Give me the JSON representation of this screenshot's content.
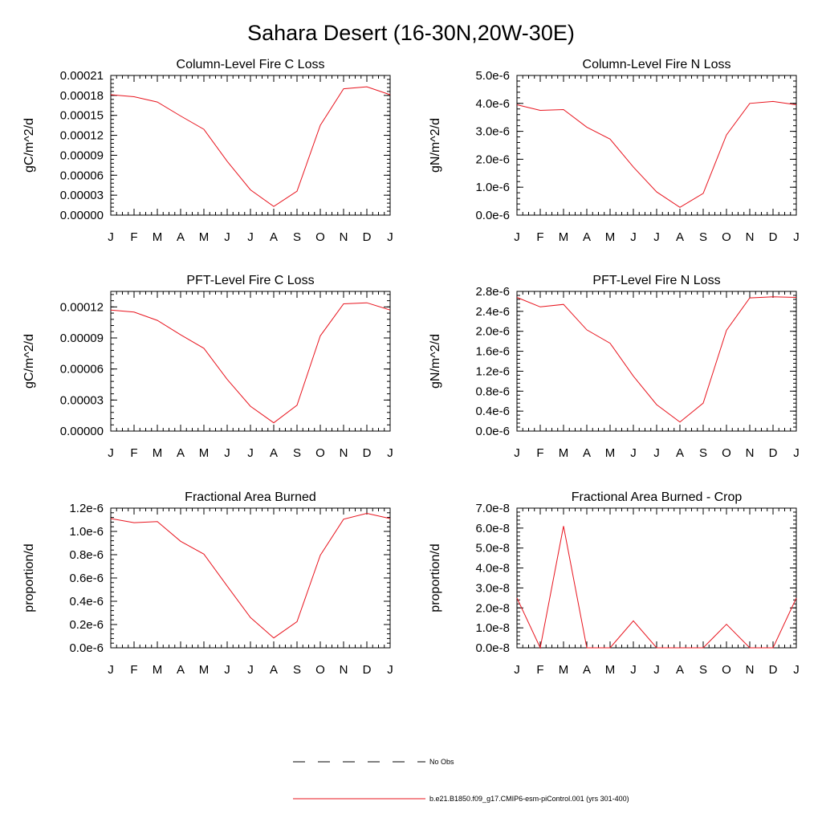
{
  "title": "Sahara Desert (16-30N,20W-30E)",
  "colors": {
    "series": "#e8141e",
    "obs": "#000000"
  },
  "legend": {
    "items": [
      {
        "label": "No Obs",
        "style": "dashed"
      },
      {
        "label": "b.e21.B1850.f09_g17.CMIP6-esm-piControl.001 (yrs 301-400)",
        "style": "solid"
      }
    ]
  },
  "chart_data": [
    {
      "type": "line",
      "title": "Column-Level Fire C Loss",
      "ylabel": "gC/m^2/d",
      "x": [
        "J",
        "F",
        "M",
        "A",
        "M",
        "J",
        "J",
        "A",
        "S",
        "O",
        "N",
        "D",
        "J"
      ],
      "ylim": [
        0,
        0.00021
      ],
      "yticks": [
        "0.00000",
        "0.00003",
        "0.00006",
        "0.00009",
        "0.00012",
        "0.00015",
        "0.00018",
        "0.00021"
      ],
      "series": [
        {
          "values": [
            0.000181,
            0.000178,
            0.00017,
            0.000149,
            0.000129,
            8.1e-05,
            3.8e-05,
            1.3e-05,
            3.6e-05,
            0.000135,
            0.00019,
            0.000193,
            0.000181
          ]
        }
      ]
    },
    {
      "type": "line",
      "title": "Column-Level Fire N Loss",
      "ylabel": "gN/m^2/d",
      "x": [
        "J",
        "F",
        "M",
        "A",
        "M",
        "J",
        "J",
        "A",
        "S",
        "O",
        "N",
        "D",
        "J"
      ],
      "ylim": [
        0,
        5e-06
      ],
      "yticks": [
        "0.0e-6",
        "1.0e-6",
        "2.0e-6",
        "3.0e-6",
        "4.0e-6",
        "5.0e-6"
      ],
      "series": [
        {
          "values": [
            3.95e-06,
            3.75e-06,
            3.78e-06,
            3.15e-06,
            2.72e-06,
            1.72e-06,
            8.3e-07,
            2.8e-07,
            7.8e-07,
            2.87e-06,
            4e-06,
            4.07e-06,
            3.95e-06
          ]
        }
      ]
    },
    {
      "type": "line",
      "title": "PFT-Level Fire C Loss",
      "ylabel": "gC/m^2/d",
      "x": [
        "J",
        "F",
        "M",
        "A",
        "M",
        "J",
        "J",
        "A",
        "S",
        "O",
        "N",
        "D",
        "J"
      ],
      "ylim": [
        0,
        0.000135
      ],
      "yticks": [
        "0.00000",
        "0.00003",
        "0.00006",
        "0.00009",
        "0.00012"
      ],
      "series": [
        {
          "values": [
            0.000117,
            0.000115,
            0.000107,
            9.3e-05,
            8e-05,
            5e-05,
            2.4e-05,
            8e-06,
            2.5e-05,
            9.2e-05,
            0.000123,
            0.000124,
            0.000117
          ]
        }
      ]
    },
    {
      "type": "line",
      "title": "PFT-Level Fire N Loss",
      "ylabel": "gN/m^2/d",
      "x": [
        "J",
        "F",
        "M",
        "A",
        "M",
        "J",
        "J",
        "A",
        "S",
        "O",
        "N",
        "D",
        "J"
      ],
      "ylim": [
        0,
        2.8e-06
      ],
      "yticks": [
        "0.0e-6",
        "0.4e-6",
        "0.8e-6",
        "1.2e-6",
        "1.6e-6",
        "2.0e-6",
        "2.4e-6",
        "2.8e-6"
      ],
      "series": [
        {
          "values": [
            2.68e-06,
            2.49e-06,
            2.54e-06,
            2.03e-06,
            1.76e-06,
            1.1e-06,
            5.3e-07,
            1.8e-07,
            5.6e-07,
            2.02e-06,
            2.67e-06,
            2.69e-06,
            2.68e-06
          ]
        }
      ]
    },
    {
      "type": "line",
      "title": "Fractional Area Burned",
      "ylabel": "proportion/d",
      "x": [
        "J",
        "F",
        "M",
        "A",
        "M",
        "J",
        "J",
        "A",
        "S",
        "O",
        "N",
        "D",
        "J"
      ],
      "ylim": [
        0,
        1.2e-06
      ],
      "yticks": [
        "0.0e-6",
        "0.2e-6",
        "0.4e-6",
        "0.6e-6",
        "0.8e-6",
        "1.0e-6",
        "1.2e-6"
      ],
      "series": [
        {
          "values": [
            1.11e-06,
            1.075e-06,
            1.085e-06,
            9.15e-07,
            8.05e-07,
            5.3e-07,
            2.6e-07,
            8.5e-08,
            2.25e-07,
            7.95e-07,
            1.105e-06,
            1.155e-06,
            1.11e-06
          ]
        }
      ]
    },
    {
      "type": "line",
      "title": "Fractional Area Burned - Crop",
      "ylabel": "proportion/d",
      "x": [
        "J",
        "F",
        "M",
        "A",
        "M",
        "J",
        "J",
        "A",
        "S",
        "O",
        "N",
        "D",
        "J"
      ],
      "ylim": [
        0,
        7e-08
      ],
      "yticks": [
        "0.0e-8",
        "1.0e-8",
        "2.0e-8",
        "3.0e-8",
        "4.0e-8",
        "5.0e-8",
        "6.0e-8",
        "7.0e-8"
      ],
      "series": [
        {
          "values": [
            2.5e-08,
            0,
            6.1e-08,
            0,
            0,
            1.35e-08,
            0,
            0,
            0,
            1.18e-08,
            0,
            0,
            2.5e-08
          ]
        }
      ]
    }
  ]
}
